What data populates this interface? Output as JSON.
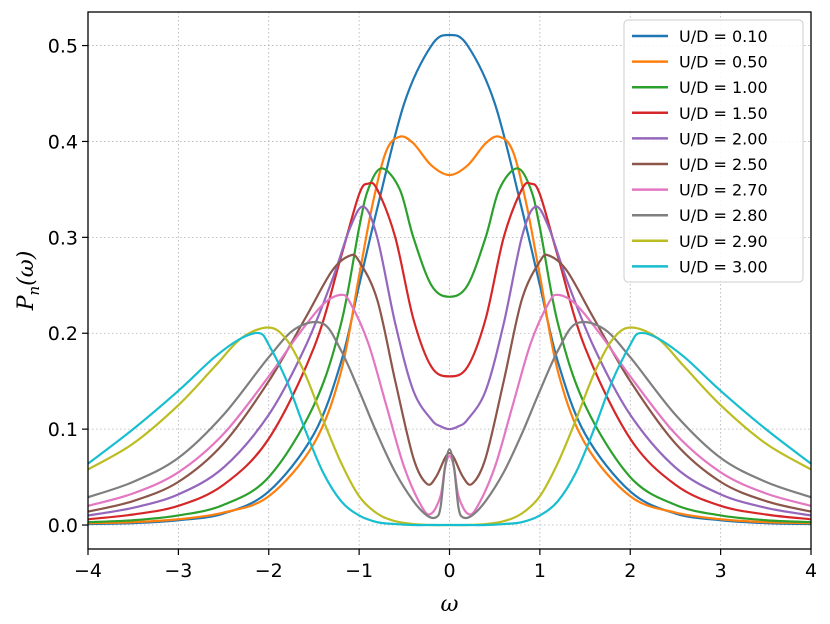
{
  "chart_data": {
    "type": "line",
    "xlabel": "ω",
    "ylabel_main": "P",
    "ylabel_sub": "n",
    "ylabel_rest": "(ω)",
    "xlim": [
      -4,
      4
    ],
    "ylim": [
      -0.025,
      0.535
    ],
    "xticks": [
      -4,
      -3,
      -2,
      -1,
      0,
      1,
      2,
      3,
      4
    ],
    "xtick_labels": [
      "−4",
      "−3",
      "−2",
      "−1",
      "0",
      "1",
      "2",
      "3",
      "4"
    ],
    "yticks": [
      0.0,
      0.1,
      0.2,
      0.3,
      0.4,
      0.5
    ],
    "ytick_labels": [
      "0.0",
      "0.1",
      "0.2",
      "0.3",
      "0.4",
      "0.5"
    ],
    "grid": true,
    "legend_position": "top-right",
    "series": [
      {
        "name": "U/D = 0.10",
        "color": "#1f77b4",
        "x": [
          0,
          0.2,
          0.5,
          0.8,
          1.0,
          1.2,
          1.5,
          2.0,
          2.5,
          3.0,
          3.5,
          4.0
        ],
        "y": [
          0.511,
          0.5,
          0.44,
          0.33,
          0.25,
          0.17,
          0.095,
          0.035,
          0.012,
          0.005,
          0.002,
          0.001
        ]
      },
      {
        "name": "U/D = 0.50",
        "color": "#ff7f0e",
        "x": [
          0,
          0.2,
          0.4,
          0.55,
          0.7,
          0.85,
          1.0,
          1.2,
          1.5,
          2.0,
          2.5,
          3.0,
          3.5,
          4.0
        ],
        "y": [
          0.365,
          0.375,
          0.398,
          0.405,
          0.39,
          0.335,
          0.26,
          0.16,
          0.085,
          0.03,
          0.013,
          0.006,
          0.003,
          0.002
        ]
      },
      {
        "name": "U/D = 1.00",
        "color": "#2ca02c",
        "x": [
          0,
          0.2,
          0.4,
          0.55,
          0.75,
          0.9,
          1.0,
          1.2,
          1.5,
          2.0,
          2.5,
          3.0,
          3.5,
          4.0
        ],
        "y": [
          0.238,
          0.25,
          0.3,
          0.35,
          0.372,
          0.35,
          0.31,
          0.21,
          0.125,
          0.05,
          0.021,
          0.01,
          0.005,
          0.003
        ]
      },
      {
        "name": "U/D = 1.50",
        "color": "#d62728",
        "x": [
          0,
          0.2,
          0.4,
          0.6,
          0.8,
          0.9,
          1.0,
          1.2,
          1.5,
          2.0,
          2.5,
          3.0,
          3.5,
          4.0
        ],
        "y": [
          0.155,
          0.165,
          0.215,
          0.3,
          0.35,
          0.356,
          0.345,
          0.28,
          0.185,
          0.09,
          0.042,
          0.02,
          0.011,
          0.006
        ]
      },
      {
        "name": "U/D = 2.00",
        "color": "#9467bd",
        "x": [
          0,
          0.1,
          0.2,
          0.4,
          0.6,
          0.8,
          0.95,
          1.1,
          1.3,
          1.6,
          2.0,
          2.5,
          3.0,
          3.5,
          4.0
        ],
        "y": [
          0.1,
          0.103,
          0.11,
          0.14,
          0.21,
          0.3,
          0.332,
          0.31,
          0.255,
          0.185,
          0.115,
          0.06,
          0.032,
          0.018,
          0.01
        ]
      },
      {
        "name": "U/D = 2.50",
        "color": "#8c564b",
        "x": [
          0,
          0.05,
          0.15,
          0.25,
          0.4,
          0.6,
          0.8,
          1.0,
          1.1,
          1.3,
          1.6,
          2.0,
          2.5,
          3.0,
          3.5,
          4.0
        ],
        "y": [
          0.075,
          0.07,
          0.05,
          0.043,
          0.07,
          0.15,
          0.235,
          0.275,
          0.281,
          0.265,
          0.215,
          0.15,
          0.085,
          0.045,
          0.025,
          0.014
        ]
      },
      {
        "name": "U/D = 2.70",
        "color": "#e377c2",
        "x": [
          0,
          0.05,
          0.1,
          0.2,
          0.3,
          0.5,
          0.7,
          0.9,
          1.1,
          1.2,
          1.4,
          1.7,
          2.0,
          2.5,
          3.0,
          3.5,
          4.0
        ],
        "y": [
          0.072,
          0.06,
          0.03,
          0.012,
          0.018,
          0.06,
          0.125,
          0.19,
          0.232,
          0.24,
          0.23,
          0.195,
          0.155,
          0.095,
          0.055,
          0.033,
          0.02
        ]
      },
      {
        "name": "U/D = 2.80",
        "color": "#7f7f7f",
        "x": [
          0,
          0.05,
          0.1,
          0.15,
          0.25,
          0.4,
          0.6,
          0.8,
          1.0,
          1.2,
          1.4,
          1.7,
          2.0,
          2.5,
          3.0,
          3.5,
          4.0
        ],
        "y": [
          0.079,
          0.06,
          0.018,
          0.008,
          0.01,
          0.025,
          0.055,
          0.095,
          0.14,
          0.182,
          0.21,
          0.205,
          0.175,
          0.115,
          0.07,
          0.045,
          0.029
        ]
      },
      {
        "name": "U/D = 2.90",
        "color": "#bcbd22",
        "x": [
          0,
          0.2,
          0.4,
          0.6,
          0.8,
          1.0,
          1.2,
          1.4,
          1.6,
          1.8,
          2.0,
          2.3,
          2.6,
          3.0,
          3.5,
          4.0
        ],
        "y": [
          0.0,
          0.0,
          0.001,
          0.004,
          0.012,
          0.03,
          0.065,
          0.11,
          0.158,
          0.193,
          0.206,
          0.195,
          0.165,
          0.125,
          0.085,
          0.058
        ]
      },
      {
        "name": "U/D = 3.00",
        "color": "#17becf",
        "x": [
          0,
          0.2,
          0.4,
          0.6,
          0.8,
          1.0,
          1.2,
          1.4,
          1.6,
          1.8,
          2.0,
          2.1,
          2.3,
          2.6,
          3.0,
          3.5,
          4.0
        ],
        "y": [
          0.0,
          0.0,
          0.0,
          0.001,
          0.003,
          0.01,
          0.025,
          0.055,
          0.1,
          0.15,
          0.188,
          0.2,
          0.195,
          0.175,
          0.14,
          0.1,
          0.064
        ]
      }
    ]
  }
}
